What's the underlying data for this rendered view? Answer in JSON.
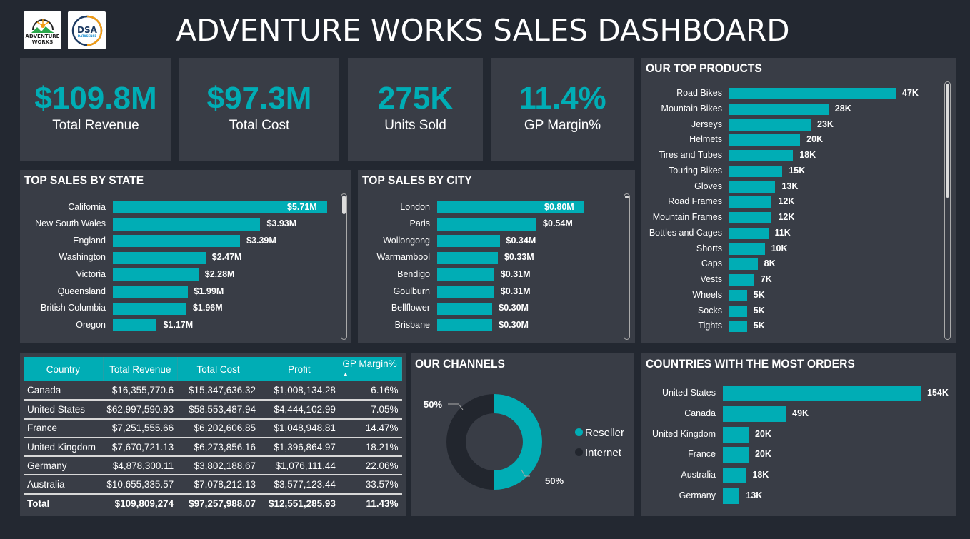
{
  "header": {
    "title": "ADVENTURE WORKS SALES DASHBOARD",
    "logos": [
      "ADVENTURE WORKS",
      "DSA DATASENSE ANALYTICS"
    ]
  },
  "kpis": [
    {
      "value": "$109.8M",
      "label": "Total Revenue"
    },
    {
      "value": "$97.3M",
      "label": "Total Cost"
    },
    {
      "value": "275K",
      "label": "Units Sold"
    },
    {
      "value": "11.4%",
      "label": "GP Margin%"
    }
  ],
  "colors": {
    "accent": "#00adb5",
    "panel": "#393d46",
    "background": "#232831",
    "dark": "#22262e"
  },
  "chart_data": [
    {
      "type": "bar",
      "orientation": "horizontal",
      "title": "TOP SALES BY STATE",
      "categories": [
        "California",
        "New South Wales",
        "England",
        "Washington",
        "Victoria",
        "Queensland",
        "British Columbia",
        "Oregon"
      ],
      "values": [
        5.71,
        3.93,
        3.39,
        2.47,
        2.28,
        1.99,
        1.96,
        1.17
      ],
      "labels": [
        "$5.71M",
        "$3.93M",
        "$3.39M",
        "$2.47M",
        "$2.28M",
        "$1.99M",
        "$1.96M",
        "$1.17M"
      ]
    },
    {
      "type": "bar",
      "orientation": "horizontal",
      "title": "TOP SALES BY CITY",
      "categories": [
        "London",
        "Paris",
        "Wollongong",
        "Warrnambool",
        "Bendigo",
        "Goulburn",
        "Bellflower",
        "Brisbane"
      ],
      "values": [
        0.8,
        0.54,
        0.34,
        0.33,
        0.31,
        0.31,
        0.3,
        0.3
      ],
      "labels": [
        "$0.80M",
        "$0.54M",
        "$0.34M",
        "$0.33M",
        "$0.31M",
        "$0.31M",
        "$0.30M",
        "$0.30M"
      ]
    },
    {
      "type": "bar",
      "orientation": "horizontal",
      "title": "OUR TOP PRODUCTS",
      "categories": [
        "Road Bikes",
        "Mountain Bikes",
        "Jerseys",
        "Helmets",
        "Tires and Tubes",
        "Touring Bikes",
        "Gloves",
        "Road Frames",
        "Mountain Frames",
        "Bottles and Cages",
        "Shorts",
        "Caps",
        "Vests",
        "Wheels",
        "Socks",
        "Tights"
      ],
      "values": [
        47,
        28,
        23,
        20,
        18,
        15,
        13,
        12,
        12,
        11,
        10,
        8,
        7,
        5,
        5,
        5
      ],
      "labels": [
        "47K",
        "28K",
        "23K",
        "20K",
        "18K",
        "15K",
        "13K",
        "12K",
        "12K",
        "11K",
        "10K",
        "8K",
        "7K",
        "5K",
        "5K",
        "5K"
      ]
    },
    {
      "type": "bar",
      "orientation": "horizontal",
      "title": "COUNTRIES WITH THE MOST ORDERS",
      "categories": [
        "United States",
        "Canada",
        "United Kingdom",
        "France",
        "Australia",
        "Germany"
      ],
      "values": [
        154,
        49,
        20,
        20,
        18,
        13
      ],
      "labels": [
        "154K",
        "49K",
        "20K",
        "20K",
        "18K",
        "13K"
      ]
    },
    {
      "type": "pie",
      "donut": true,
      "title": "OUR CHANNELS",
      "categories": [
        "Reseller",
        "Internet"
      ],
      "values": [
        50,
        50
      ],
      "labels": [
        "50%",
        "50%"
      ],
      "colors": [
        "#00adb5",
        "#22262e"
      ],
      "legend": "right"
    }
  ],
  "table": {
    "columns": [
      "Country",
      "Total Revenue",
      "Total Cost",
      "Profit",
      "GP Margin%"
    ],
    "sort": "GP Margin% ascending",
    "rows": [
      [
        "Canada",
        "$16,355,770.6",
        "$15,347,636.32",
        "$1,008,134.28",
        "6.16%"
      ],
      [
        "United States",
        "$62,997,590.93",
        "$58,553,487.94",
        "$4,444,102.99",
        "7.05%"
      ],
      [
        "France",
        "$7,251,555.66",
        "$6,202,606.85",
        "$1,048,948.81",
        "14.47%"
      ],
      [
        "United Kingdom",
        "$7,670,721.13",
        "$6,273,856.16",
        "$1,396,864.97",
        "18.21%"
      ],
      [
        "Germany",
        "$4,878,300.11",
        "$3,802,188.67",
        "$1,076,111.44",
        "22.06%"
      ],
      [
        "Australia",
        "$10,655,335.57",
        "$7,078,212.13",
        "$3,577,123.44",
        "33.57%"
      ]
    ],
    "total": [
      "Total",
      "$109,809,274",
      "$97,257,988.07",
      "$12,551,285.93",
      "11.43%"
    ]
  }
}
